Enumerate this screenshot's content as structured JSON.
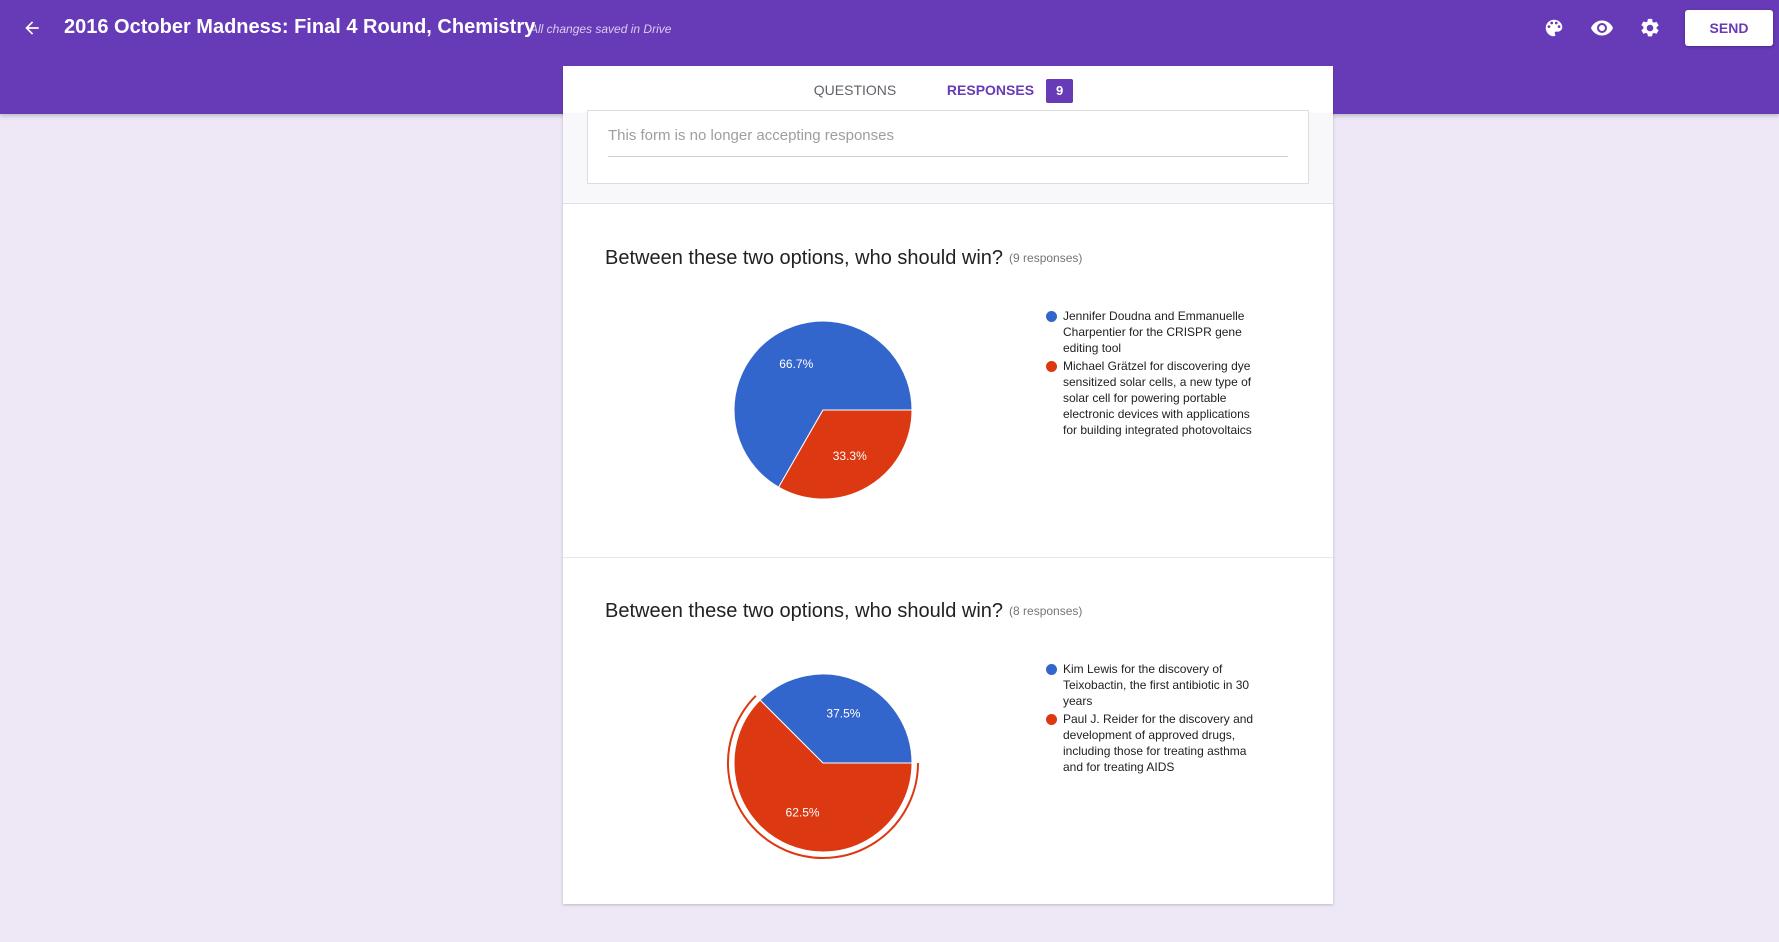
{
  "header": {
    "title": "2016 October Madness: Final 4 Round, Chemistry",
    "saved_status": "All changes saved in Drive",
    "send_label": "SEND",
    "icons": [
      "arrow-back-icon",
      "palette-icon",
      "eye-icon",
      "gear-icon"
    ]
  },
  "tabs": [
    {
      "label": "QUESTIONS"
    },
    {
      "label": "RESPONSES",
      "badge": "9"
    }
  ],
  "closed_message": "This form is no longer accepting responses",
  "colors": {
    "accent": "#673ab7",
    "series_blue": "#3366cc",
    "series_red": "#dc3912"
  },
  "questions": [
    {
      "title": "Between these two options, who should win?",
      "count": "(9 responses)",
      "options": [
        {
          "label": "Jennifer Doudna and Emmanuelle Charpentier for the CRISPR gene editing tool"
        },
        {
          "label": "Michael Grätzel for discovering dye sensitized solar cells, a new type of solar cell for powering portable electronic devices with applications for building integrated photovoltaics"
        }
      ]
    },
    {
      "title": "Between these two options, who should win?",
      "count": "(8 responses)",
      "options": [
        {
          "label": "Kim Lewis for the discovery of Teixobactin, the first antibiotic in 30 years"
        },
        {
          "label": "Paul J. Reider for the discovery and development of approved drugs, including those for treating asthma and for treating AIDS"
        }
      ]
    }
  ],
  "chart_data": [
    {
      "type": "pie",
      "labels": [
        "Jennifer Doudna and Emmanuelle Charpentier for the CRISPR gene editing tool",
        "Michael Grätzel for discovering dye sensitized solar cells, a new type of solar cell for powering portable electronic devices with applications for building integrated photovoltaics"
      ],
      "values": [
        66.7,
        33.3
      ],
      "data_labels": [
        "66.7%",
        "33.3%"
      ],
      "colors": [
        "#3366cc",
        "#dc3912"
      ],
      "legend": "right"
    },
    {
      "type": "pie",
      "labels": [
        "Kim Lewis for the discovery of Teixobactin, the first antibiotic in 30 years",
        "Paul J. Reider for the discovery and development of approved drugs, including those for treating asthma and for treating AIDS"
      ],
      "values": [
        37.5,
        62.5
      ],
      "data_labels": [
        "37.5%",
        "62.5%"
      ],
      "colors": [
        "#3366cc",
        "#dc3912"
      ],
      "highlighted": "62.5%",
      "legend": "right"
    }
  ]
}
